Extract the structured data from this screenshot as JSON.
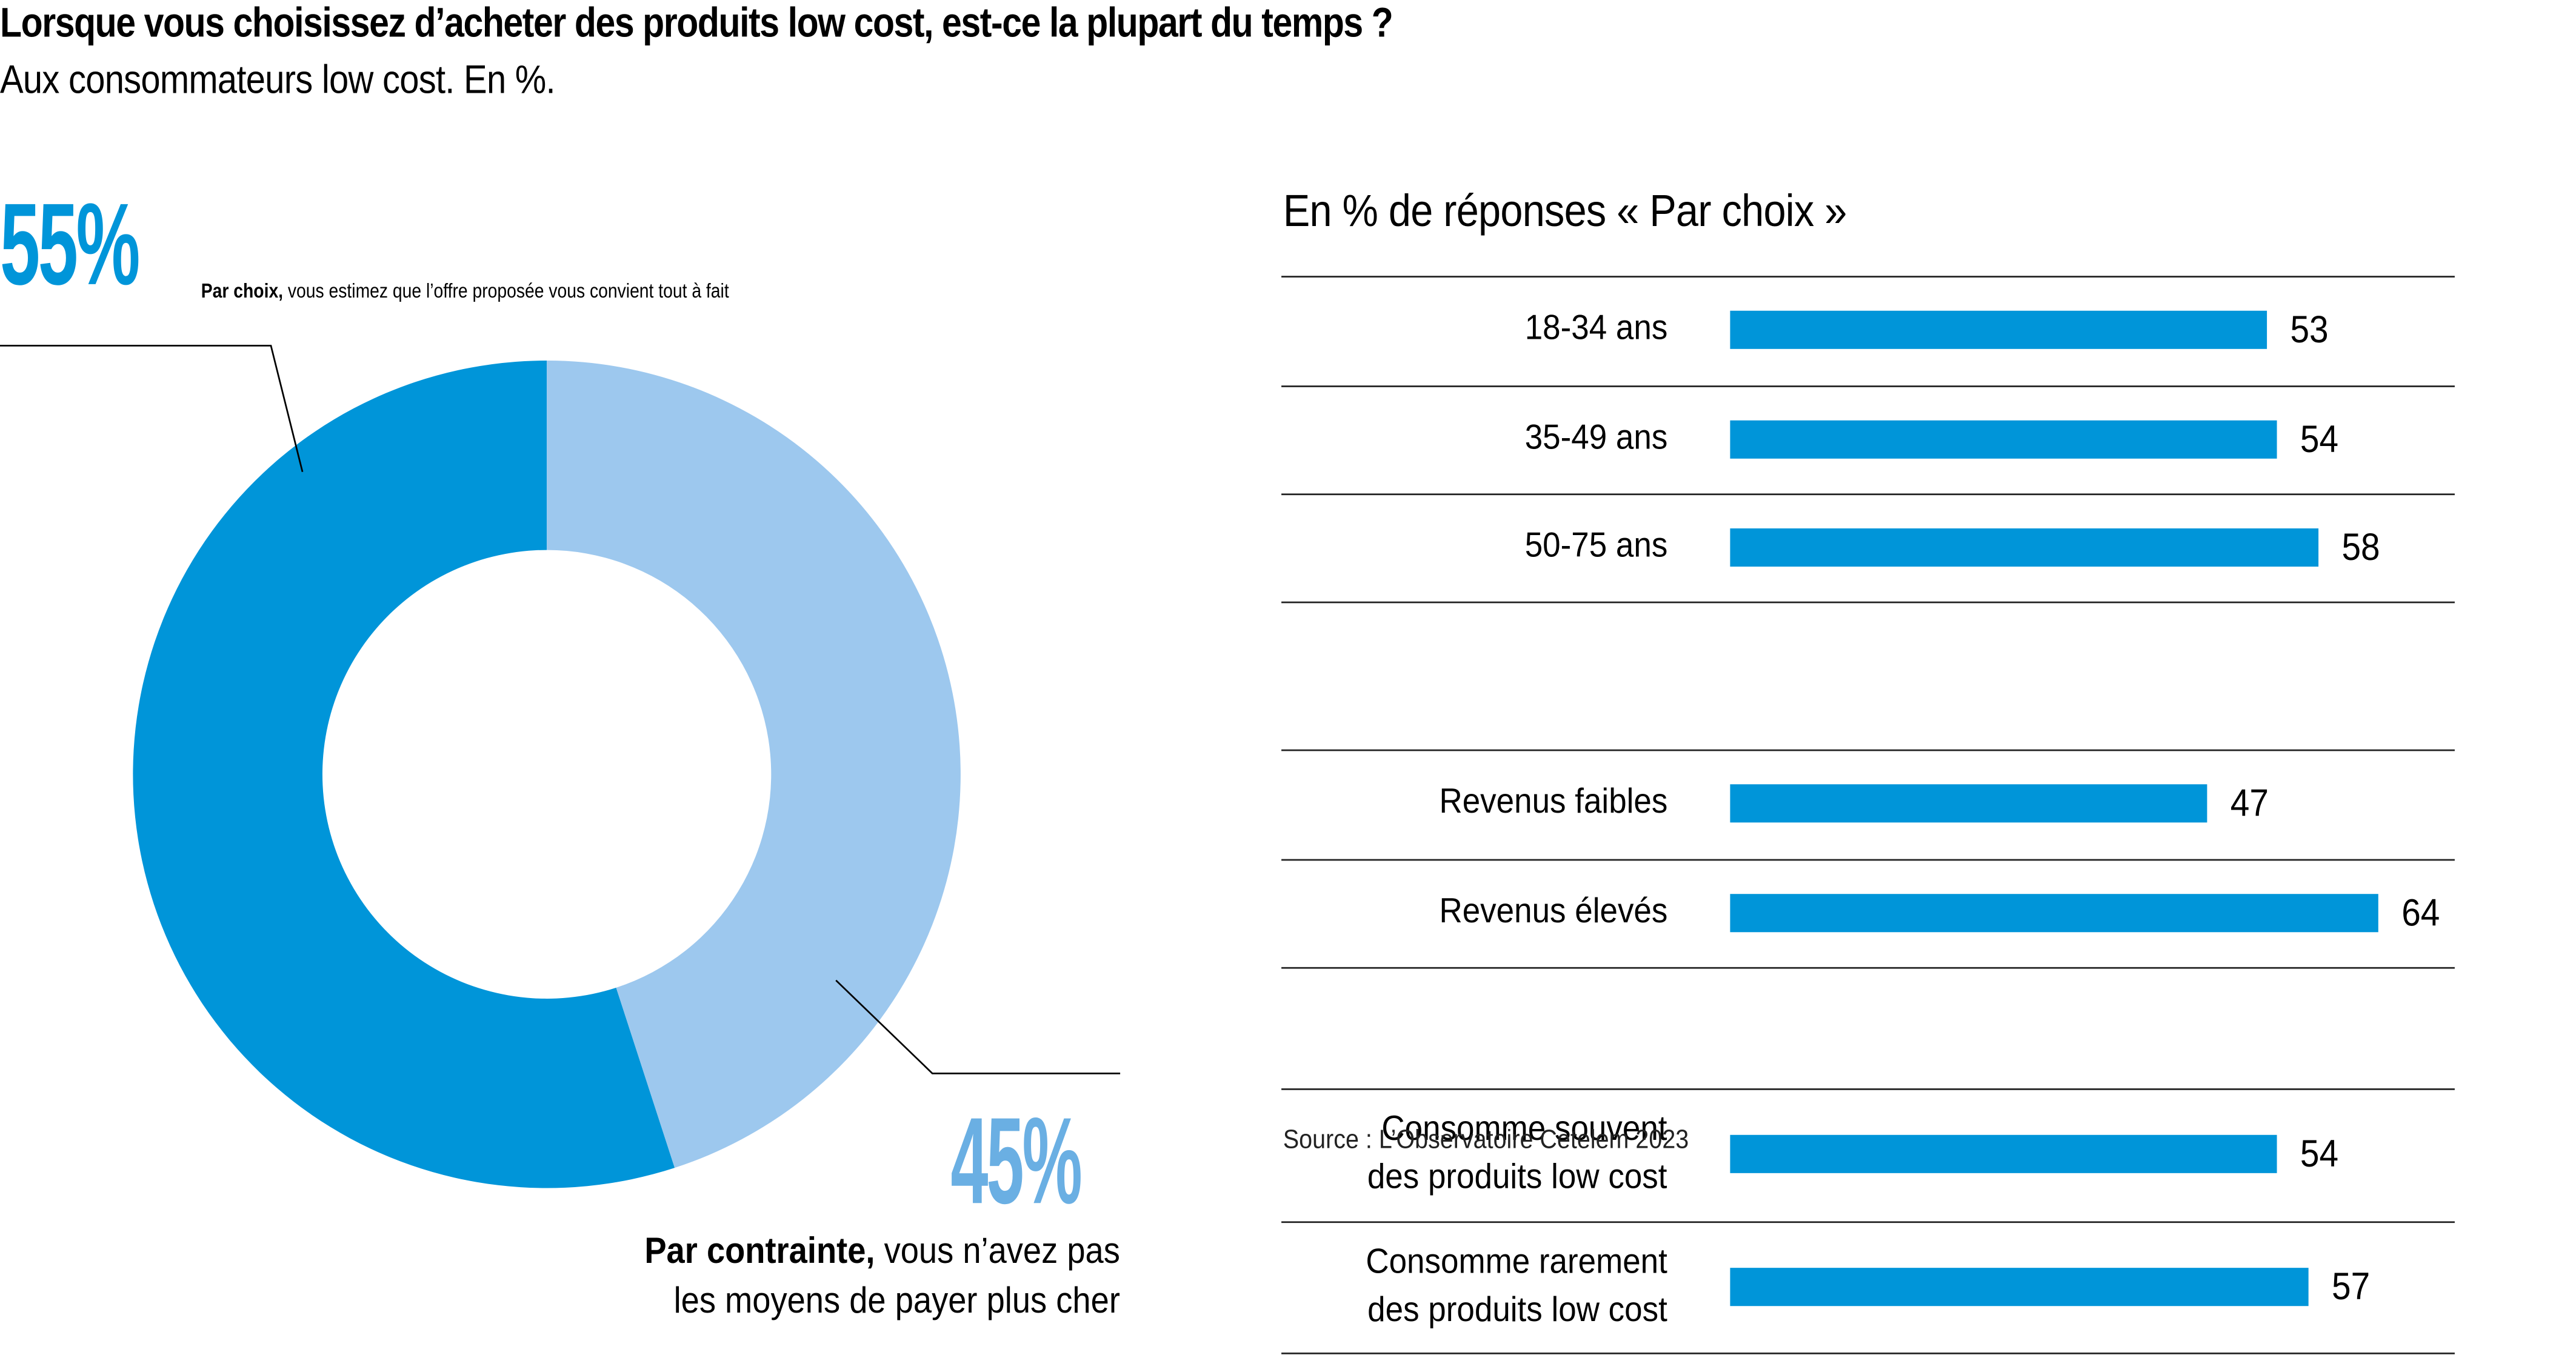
{
  "header": {
    "title": "Lorsque vous choisissez d’acheter des produits low cost, est-ce la plupart du temps ?",
    "subtitle": "Aux consommateurs low cost. En %."
  },
  "colors": {
    "primary_blue": "#0095D9",
    "light_blue": "#9DC8EE",
    "light_blue_text": "#6AAFE3",
    "rule": "#222222"
  },
  "donut_labels": {
    "choice_pct": "55%",
    "choice_bold": "Par choix,",
    "choice_text": " vous estimez que l’offre proposée vous convient tout à fait",
    "constraint_pct": "45%",
    "constraint_bold": "Par contrainte,",
    "constraint_text_1": " vous n’avez pas",
    "constraint_text_2": "les moyens de payer plus cher"
  },
  "bars_heading": "En % de réponses « Par choix »",
  "source": "Source : L’Observatoire Cetelem 2023",
  "chart_data": [
    {
      "type": "pie",
      "variant": "donut",
      "title": "Lorsque vous choisissez d’acheter des produits low cost, est-ce la plupart du temps ?",
      "subtitle": "Aux consommateurs low cost. En %.",
      "slices": [
        {
          "label": "Par choix",
          "value": 55,
          "color": "#0095D9"
        },
        {
          "label": "Par contrainte",
          "value": 45,
          "color": "#9DC8EE"
        }
      ],
      "start_angle": "top, counter-clockwise for 'Par choix'"
    },
    {
      "type": "bar",
      "orientation": "horizontal",
      "title": "En % de réponses « Par choix »",
      "xlim": [
        0,
        100
      ],
      "grid": false,
      "groups": [
        {
          "categories": [
            "18-34 ans",
            "35-49 ans",
            "50-75 ans"
          ],
          "values": [
            53,
            54,
            58
          ]
        },
        {
          "categories": [
            "Revenus faibles",
            "Revenus élevés"
          ],
          "values": [
            47,
            64
          ]
        },
        {
          "categories": [
            "Consomme souvent des produits low cost",
            "Consomme rarement des produits low cost"
          ],
          "values": [
            54,
            57
          ]
        }
      ],
      "categories": [
        "18-34 ans",
        "35-49 ans",
        "50-75 ans",
        "Revenus faibles",
        "Revenus élevés",
        "Consomme souvent des produits low cost",
        "Consomme rarement des produits low cost"
      ],
      "values": [
        53,
        54,
        58,
        47,
        64,
        54,
        57
      ],
      "color": "#0095D9"
    }
  ],
  "rows": [
    {
      "label_1": "18-34 ans",
      "label_2": "",
      "value": 53
    },
    {
      "label_1": "35-49 ans",
      "label_2": "",
      "value": 54
    },
    {
      "label_1": "50-75 ans",
      "label_2": "",
      "value": 58
    },
    {
      "label_1": "Revenus faibles",
      "label_2": "",
      "value": 47
    },
    {
      "label_1": "Revenus élevés",
      "label_2": "",
      "value": 64
    },
    {
      "label_1": "Consomme souvent",
      "label_2": "des produits low cost",
      "value": 54
    },
    {
      "label_1": "Consomme rarement",
      "label_2": "des produits low cost",
      "value": 57
    }
  ]
}
